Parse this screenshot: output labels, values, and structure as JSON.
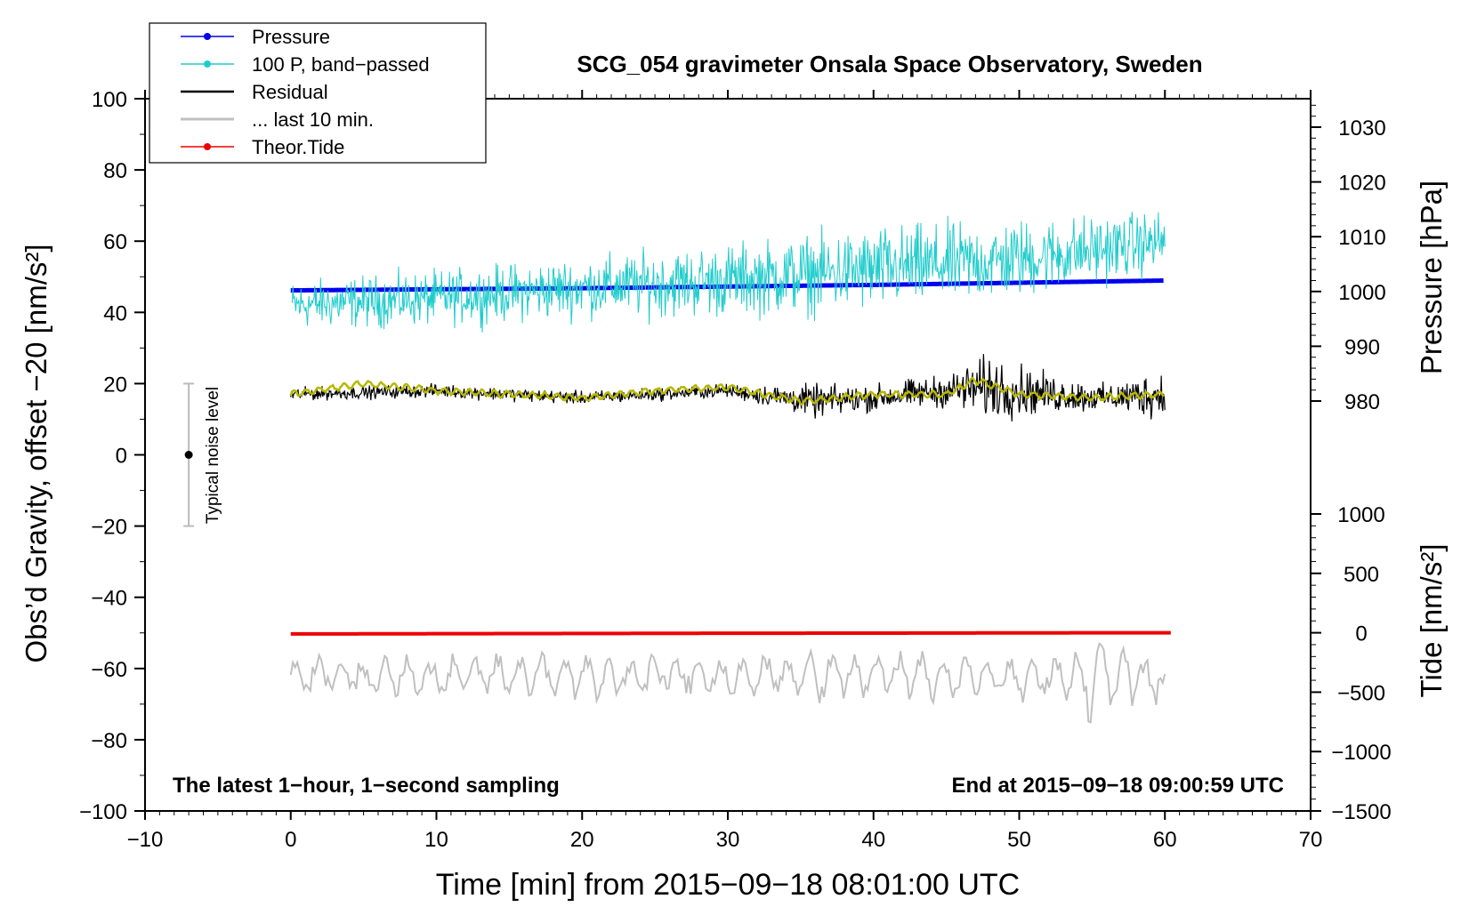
{
  "chart_data": {
    "type": "line",
    "title": "SCG_054 gravimeter Onsala Space Observatory, Sweden",
    "xlabel": "Time [min] from 2015−09−18 08:01:00 UTC",
    "ylabel_left": "Obs’d Gravity, offset −20 [nm/s²]",
    "ylabel_right_pressure": "Pressure [hPa]",
    "ylabel_right_tide": "Tide [nm/s²]",
    "note_left": "The latest 1−hour, 1−second sampling",
    "note_right": "End at 2015−09−18 09:00:59 UTC",
    "noise_label": "Typical noise level",
    "xlim": [
      -10,
      70
    ],
    "ylim": [
      -100,
      100
    ],
    "xticks": [
      -10,
      0,
      10,
      20,
      30,
      40,
      50,
      60,
      70
    ],
    "xtick_labels": [
      "−10",
      "0",
      "10",
      "20",
      "30",
      "40",
      "50",
      "60",
      "70"
    ],
    "yticks": [
      -100,
      -80,
      -60,
      -40,
      -20,
      0,
      20,
      40,
      60,
      80,
      100
    ],
    "ytick_labels": [
      "−100",
      "−80",
      "−60",
      "−40",
      "−20",
      "0",
      "20",
      "40",
      "60",
      "80",
      "100"
    ],
    "pressure_axis": {
      "ticks": [
        980,
        990,
        1000,
        1010,
        1020,
        1030
      ],
      "tick_labels": [
        "980",
        "990",
        "1000",
        "1010",
        "1020",
        "1030"
      ],
      "range": [
        975,
        1035
      ]
    },
    "tide_axis": {
      "ticks": [
        -1500,
        -1000,
        -500,
        0,
        500,
        1000
      ],
      "tick_labels": [
        "−1500",
        "−1000",
        "−500",
        "0",
        "500",
        "1000"
      ],
      "range": [
        -1500,
        1000
      ]
    },
    "legend": [
      {
        "label": "Pressure",
        "color": "#0000ee",
        "marker": true
      },
      {
        "label": "100 P, band−passed",
        "color": "#22cccc",
        "marker": true
      },
      {
        "label": "Residual",
        "color": "#000000",
        "marker": false
      },
      {
        "label": "... last 10 min.",
        "color": "#c0c0c0",
        "marker": false
      },
      {
        "label": "Theor.Tide",
        "color": "#ee0000",
        "marker": true
      }
    ],
    "series": [
      {
        "name": "Pressure",
        "axis": "pressure",
        "color": "#0000ee",
        "x": [
          0,
          10,
          20,
          30,
          40,
          50,
          60
        ],
        "values": [
          1000.2,
          1000.4,
          1000.6,
          1000.9,
          1001.2,
          1001.6,
          1002.0
        ]
      },
      {
        "name": "100 P, band−passed",
        "axis": "gravity",
        "color": "#22cccc",
        "x": [
          0,
          10,
          20,
          30,
          40,
          50,
          60
        ],
        "center": [
          42,
          44,
          47,
          49,
          52,
          55,
          60
        ],
        "amplitude": [
          8,
          9,
          10,
          12,
          14,
          13,
          10
        ]
      },
      {
        "name": "Residual",
        "axis": "gravity",
        "color": "#000000",
        "x": [
          0,
          10,
          20,
          30,
          36,
          40,
          45,
          48,
          52,
          56,
          60
        ],
        "center": [
          17,
          18,
          16,
          18,
          15,
          16,
          18,
          19,
          17,
          16,
          17
        ],
        "amplitude": [
          2,
          2,
          2,
          2,
          5,
          4,
          5,
          10,
          6,
          4,
          8
        ]
      },
      {
        "name": "Smoothed residual",
        "axis": "gravity",
        "color": "#b8b800",
        "x": [
          0,
          5,
          10,
          15,
          20,
          25,
          30,
          35,
          40,
          45,
          47,
          50,
          55,
          60
        ],
        "values": [
          17,
          20,
          18,
          17,
          16,
          18,
          19,
          15,
          17,
          17,
          21,
          17,
          16,
          17
        ]
      },
      {
        "name": "... last 10 min.",
        "axis": "gravity",
        "color": "#c0c0c0",
        "x": [
          0,
          60
        ],
        "center": [
          -62,
          -62
        ],
        "amplitude": [
          6,
          8
        ]
      },
      {
        "name": "Theor.Tide",
        "axis": "tide",
        "color": "#ee0000",
        "x": [
          0,
          10,
          20,
          30,
          40,
          50,
          60
        ],
        "values": [
          -10,
          -8,
          -6,
          -4,
          -3,
          -1,
          0
        ]
      }
    ],
    "noise_bar": {
      "x": -7,
      "center": 0,
      "low": -20,
      "high": 20
    }
  }
}
